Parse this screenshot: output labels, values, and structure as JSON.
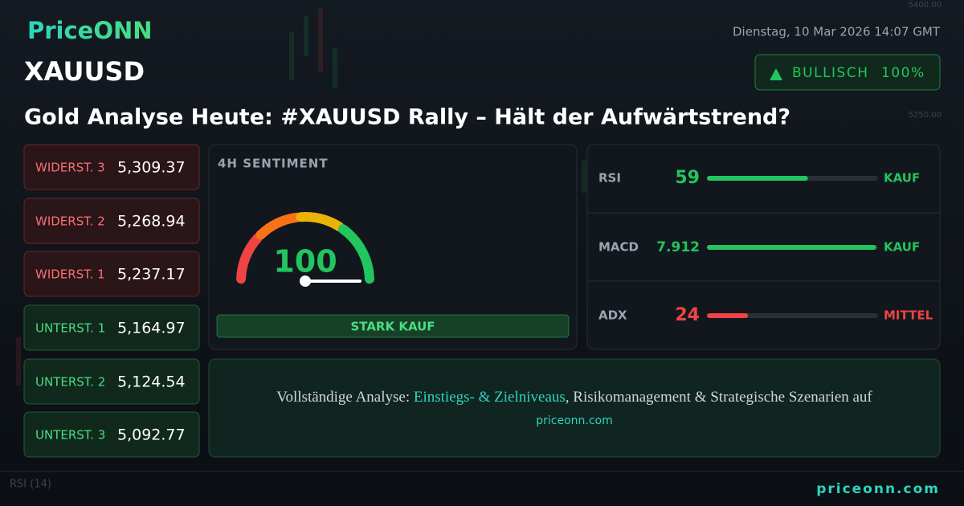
{
  "header": {
    "logo": "PriceONN",
    "date": "Dienstag, 10 Mar 2026 14:07 GMT",
    "symbol": "XAUUSD",
    "badge": {
      "label": "BULLISCH",
      "value": 100,
      "value_label": "100%"
    },
    "headline": "Gold Analyse Heute: #XAUUSD Rally – Hält der Aufwärtstrend?"
  },
  "background": {
    "axis_labels": [
      "5400.00",
      "5250.00"
    ],
    "indicator_label": "RSI (14)"
  },
  "levels": [
    {
      "label": "WIDERST. 3",
      "value": "5,309.37",
      "kind": "resistance"
    },
    {
      "label": "WIDERST. 2",
      "value": "5,268.94",
      "kind": "resistance"
    },
    {
      "label": "WIDERST. 1",
      "value": "5,237.17",
      "kind": "resistance"
    },
    {
      "label": "UNTERST. 1",
      "value": "5,164.97",
      "kind": "support"
    },
    {
      "label": "UNTERST. 2",
      "value": "5,124.54",
      "kind": "support"
    },
    {
      "label": "UNTERST. 3",
      "value": "5,092.77",
      "kind": "support"
    }
  ],
  "sentiment": {
    "title": "4H SENTIMENT",
    "value": 100,
    "range": [
      0,
      100
    ],
    "signal": "STARK KAUF"
  },
  "indicators": [
    {
      "name": "RSI",
      "value": 59,
      "range": [
        0,
        100
      ],
      "signal": "KAUF",
      "color": "#22c55e"
    },
    {
      "name": "MACD",
      "value": 7.912,
      "range": [
        0,
        8
      ],
      "signal": "KAUF",
      "color": "#22c55e"
    },
    {
      "name": "ADX",
      "value": 24,
      "range": [
        0,
        100
      ],
      "signal": "MITTEL",
      "color": "#ef4444"
    }
  ],
  "cta": {
    "lead": "Vollständige Analyse: ",
    "highlight": "Einstiegs- & Zielniveaus",
    "rest": ", Risikomanagement & Strategische Szenarien auf",
    "link": "priceonn.com"
  },
  "footer": {
    "site": "priceonn.com"
  }
}
